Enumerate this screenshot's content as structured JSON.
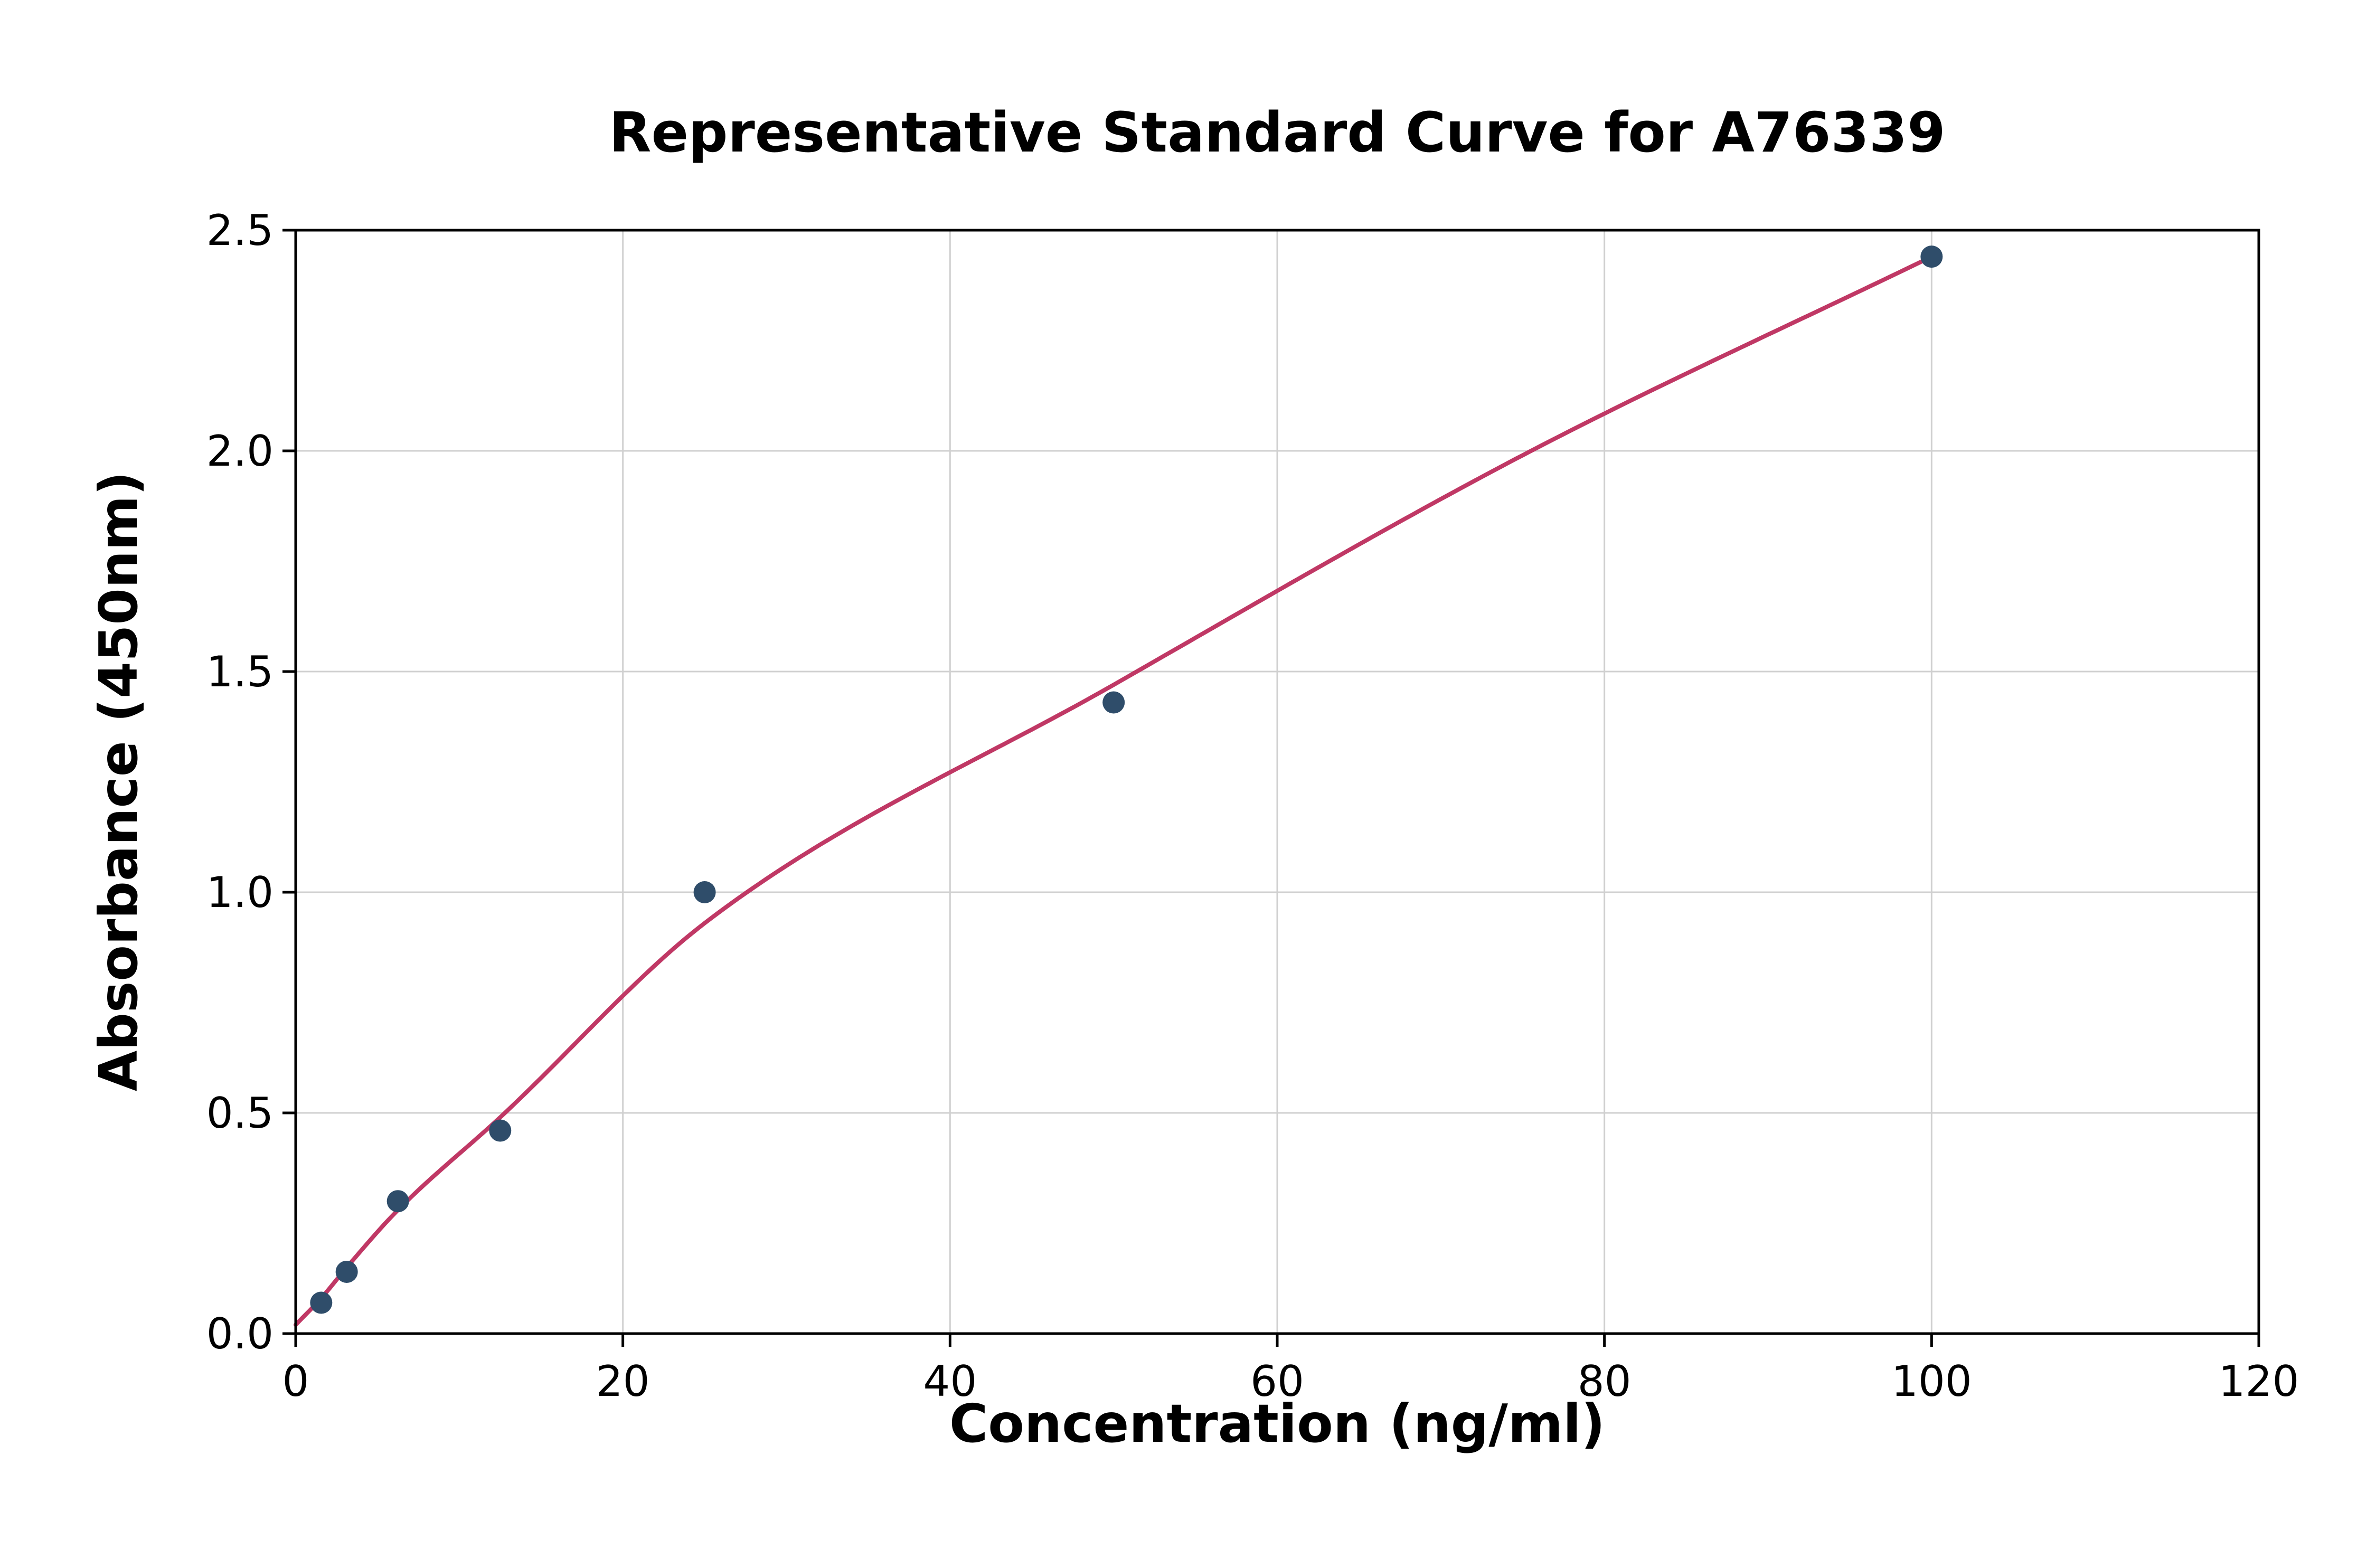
{
  "chart_data": {
    "type": "scatter",
    "title": "Representative Standard Curve for A76339",
    "xlabel": "Concentration (ng/ml)",
    "ylabel": "Absorbance (450nm)",
    "xlim": [
      0,
      120
    ],
    "ylim": [
      0,
      2.5
    ],
    "grid": true,
    "xticks": {
      "values": [
        0,
        20,
        40,
        60,
        80,
        100,
        120
      ],
      "labels": [
        "0",
        "20",
        "40",
        "60",
        "80",
        "100",
        "120"
      ]
    },
    "yticks": {
      "values": [
        0,
        0.5,
        1,
        1.5,
        2,
        2.5
      ],
      "labels": [
        "0.0",
        "0.5",
        "1.0",
        "1.5",
        "2.0",
        "2.5"
      ]
    },
    "series": [
      {
        "name": "standards",
        "type": "scatter",
        "color": "#2f4d6a",
        "marker_radius": 21,
        "points": [
          [
            1.56,
            0.07
          ],
          [
            3.12,
            0.14
          ],
          [
            6.25,
            0.3
          ],
          [
            12.5,
            0.46
          ],
          [
            25,
            1.0
          ],
          [
            50,
            1.43
          ],
          [
            100,
            2.44
          ]
        ]
      },
      {
        "name": "fitted-curve",
        "type": "line",
        "color": "#c03865",
        "line_width": 8,
        "points": [
          [
            0,
            0.02
          ],
          [
            1.56,
            0.08
          ],
          [
            3.12,
            0.15
          ],
          [
            6.25,
            0.28
          ],
          [
            12.5,
            0.49
          ],
          [
            25,
            0.93
          ],
          [
            50,
            1.47
          ],
          [
            75,
            1.99
          ],
          [
            100,
            2.44
          ]
        ]
      }
    ],
    "colors": {
      "grid": "#d0d0d0",
      "axis": "#000000",
      "background": "#ffffff"
    }
  }
}
